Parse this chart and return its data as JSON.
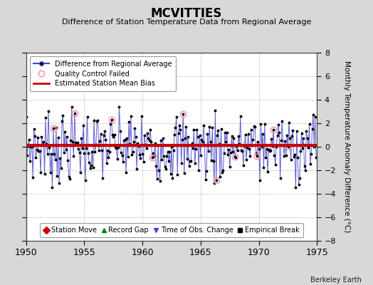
{
  "title": "MCVITTIES",
  "subtitle": "Difference of Station Temperature Data from Regional Average",
  "ylabel_right": "Monthly Temperature Anomaly Difference (°C)",
  "ylim": [
    -8,
    8
  ],
  "xlim": [
    1950,
    1975
  ],
  "yticks": [
    -8,
    -6,
    -4,
    -2,
    0,
    2,
    4,
    6,
    8
  ],
  "xticks": [
    1950,
    1955,
    1960,
    1965,
    1970,
    1975
  ],
  "bias_value": 0.1,
  "background_color": "#d8d8d8",
  "plot_bg_color": "#ffffff",
  "grid_color": "#bbbbbb",
  "line_color": "#4444cc",
  "marker_color": "#000000",
  "bias_color": "#cc0000",
  "qc_color": "#ff88aa",
  "watermark": "Berkeley Earth",
  "qc_failed_indices": [
    28,
    50,
    88,
    130,
    162,
    196,
    215,
    238,
    255,
    270
  ],
  "seed": 7
}
